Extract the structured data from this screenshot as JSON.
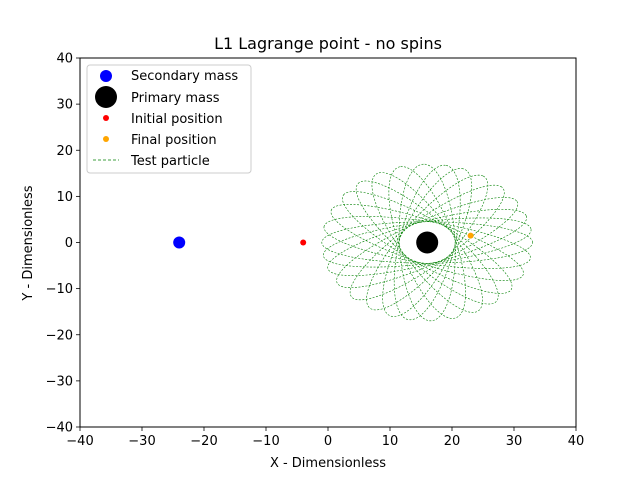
{
  "chart_data": {
    "type": "scatter",
    "title": "L1 Lagrange point - no spins",
    "xlabel": "X - Dimensionless",
    "ylabel": "Y - Dimensionless",
    "xlim": [
      -40,
      40
    ],
    "ylim": [
      -40,
      40
    ],
    "x_ticks": [
      -40,
      -30,
      -20,
      -10,
      0,
      10,
      20,
      30,
      40
    ],
    "y_ticks": [
      -40,
      -30,
      -20,
      -10,
      0,
      10,
      20,
      30,
      40
    ],
    "x_tick_labels": [
      "−40",
      "−30",
      "−20",
      "−10",
      "0",
      "10",
      "20",
      "30",
      "40"
    ],
    "y_tick_labels": [
      "−40",
      "−30",
      "−20",
      "−10",
      "0",
      "10",
      "20",
      "30",
      "40"
    ],
    "grid": false,
    "legend_position": "top-left",
    "series": [
      {
        "name": "Secondary mass",
        "kind": "point",
        "x": -24,
        "y": 0,
        "color": "#0000ff"
      },
      {
        "name": "Primary mass",
        "kind": "point",
        "x": 16,
        "y": 0,
        "color": "#000000"
      },
      {
        "name": "Initial position",
        "kind": "point",
        "x": -4,
        "y": 0,
        "color": "#ff0000"
      },
      {
        "name": "Final position",
        "kind": "point",
        "x": 23,
        "y": 1.5,
        "color": "#ffa500"
      },
      {
        "name": "Test particle",
        "kind": "trajectory",
        "color": "#008000",
        "style": "dashed",
        "center": [
          16,
          0
        ],
        "semi_major": 17,
        "semi_minor": 4.5,
        "rotation_deg": [
          0,
          10,
          20,
          32,
          45,
          58,
          70,
          80,
          92,
          105,
          118,
          130,
          142,
          155,
          168
        ]
      }
    ]
  }
}
